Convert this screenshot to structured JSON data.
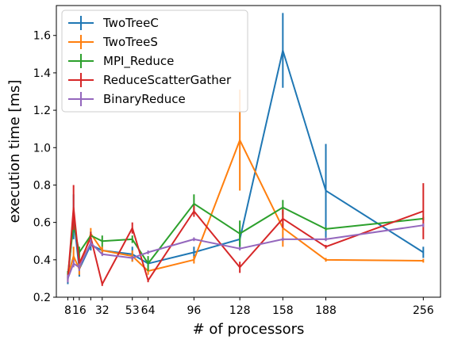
{
  "chart_data": {
    "type": "line",
    "xlabel": "# of processors",
    "ylabel": "execution time [ms]",
    "x": [
      8,
      12,
      16,
      24,
      32,
      53,
      64,
      96,
      128,
      158,
      188,
      256
    ],
    "x_ticks": [
      8,
      16,
      32,
      53,
      64,
      96,
      128,
      158,
      188,
      256
    ],
    "x_tick_labels": [
      "8",
      "16",
      "32",
      "53",
      "64",
      "96",
      "128",
      "158",
      "188",
      "256"
    ],
    "x_minor_ticks": [
      12,
      24
    ],
    "xlim": [
      0,
      268
    ],
    "ylim": [
      0.2,
      1.76
    ],
    "y_ticks": [
      0.2,
      0.4,
      0.6,
      0.8,
      1.0,
      1.2,
      1.4,
      1.6
    ],
    "y_tick_labels": [
      "0.2",
      "0.4",
      "0.6",
      "0.8",
      "1.0",
      "1.2",
      "1.4",
      "1.6"
    ],
    "grid": false,
    "legend_position": "top-left",
    "series": [
      {
        "name": "TwoTreeC",
        "color": "#1f77b4",
        "values": [
          0.29,
          0.63,
          0.35,
          0.48,
          0.45,
          0.43,
          0.38,
          0.44,
          0.51,
          1.52,
          0.77,
          0.44
        ],
        "errors": [
          0.02,
          0.12,
          0.04,
          0.03,
          0.02,
          0.04,
          0.02,
          0.03,
          0.05,
          0.2,
          0.25,
          0.03
        ]
      },
      {
        "name": "TwoTreeS",
        "color": "#ff7f0e",
        "values": [
          0.31,
          0.42,
          0.35,
          0.54,
          0.45,
          0.42,
          0.34,
          0.4,
          1.04,
          0.57,
          0.4,
          0.395
        ],
        "errors": [
          0.02,
          0.05,
          0.03,
          0.03,
          0.02,
          0.03,
          0.02,
          0.02,
          0.27,
          0.1,
          0.01,
          0.01
        ]
      },
      {
        "name": "MPI_Reduce",
        "color": "#2ca02c",
        "values": [
          0.32,
          0.59,
          0.44,
          0.53,
          0.5,
          0.51,
          0.38,
          0.7,
          0.54,
          0.68,
          0.565,
          0.62
        ],
        "errors": [
          0.02,
          0.03,
          0.03,
          0.02,
          0.03,
          0.02,
          0.04,
          0.05,
          0.07,
          0.04,
          0.01,
          0.01
        ]
      },
      {
        "name": "ReduceScatterGather",
        "color": "#d62728",
        "values": [
          0.3,
          0.68,
          0.38,
          0.52,
          0.27,
          0.57,
          0.29,
          0.66,
          0.36,
          0.62,
          0.47,
          0.66
        ],
        "errors": [
          0.02,
          0.12,
          0.03,
          0.03,
          0.01,
          0.03,
          0.01,
          0.03,
          0.03,
          0.05,
          0.01,
          0.15
        ]
      },
      {
        "name": "BinaryReduce",
        "color": "#9467bd",
        "values": [
          0.3,
          0.38,
          0.36,
          0.49,
          0.43,
          0.41,
          0.44,
          0.51,
          0.46,
          0.51,
          0.51,
          0.585
        ],
        "errors": [
          0.02,
          0.02,
          0.02,
          0.02,
          0.01,
          0.01,
          0.01,
          0.01,
          0.01,
          0.01,
          0.01,
          0.01
        ]
      }
    ]
  }
}
